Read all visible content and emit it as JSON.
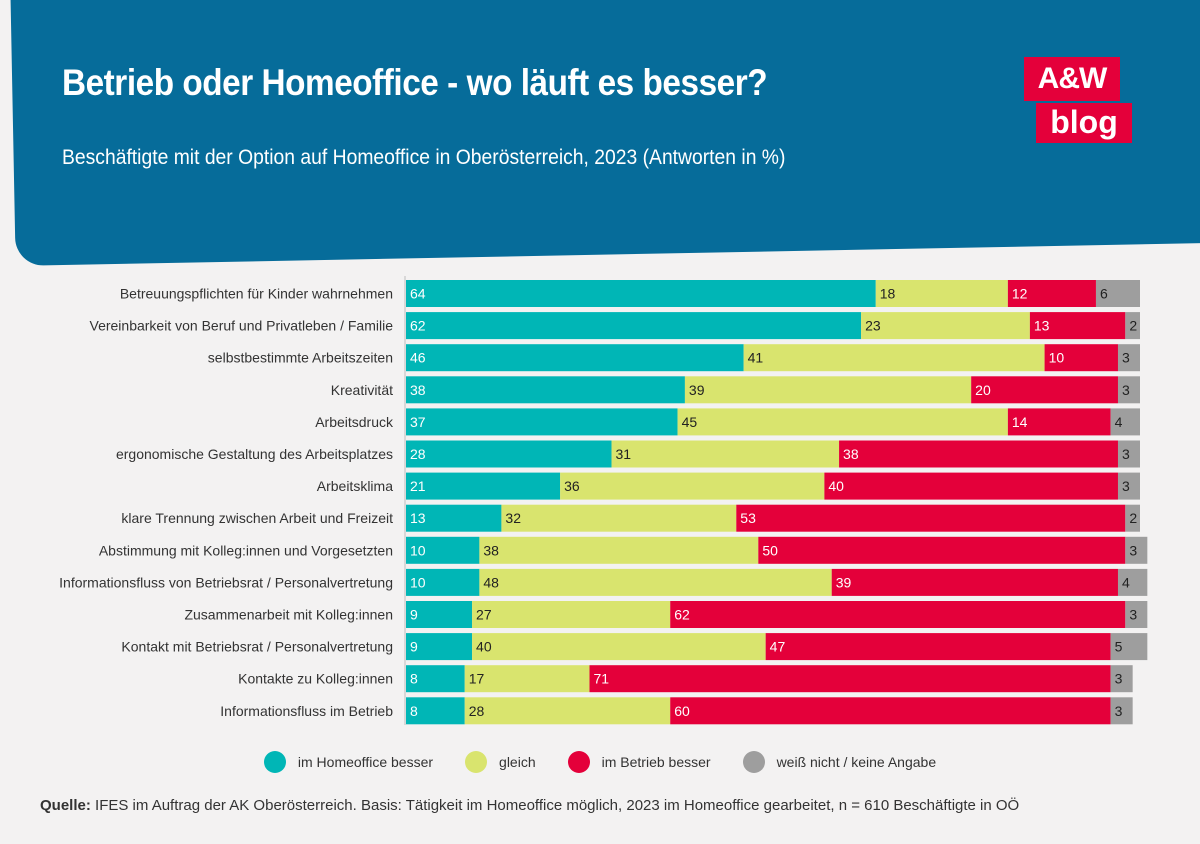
{
  "header": {
    "title": "Betrieb oder Homeoffice - wo läuft es besser?",
    "subtitle": "Beschäftigte mit der Option auf Homeoffice in Oberösterreich, 2023 (Antworten in %)"
  },
  "logo": {
    "line1": "A&W",
    "line2": "blog"
  },
  "colors": {
    "banner": "#066c9a",
    "homeoffice": "#00b6b6",
    "gleich": "#d9e46e",
    "betrieb": "#e4003a",
    "keine": "#9e9e9e"
  },
  "chart_data": {
    "type": "bar",
    "orientation": "horizontal-stacked-100",
    "title": "Betrieb oder Homeoffice - wo läuft es besser?",
    "subtitle": "Beschäftigte mit der Option auf Homeoffice in Oberösterreich, 2023 (Antworten in %)",
    "xlim": [
      0,
      100
    ],
    "categories": [
      "Betreuungspflichten für Kinder wahrnehmen",
      "Vereinbarkeit von Beruf und Privatleben / Familie",
      "selbstbestimmte Arbeitszeiten",
      "Kreativität",
      "Arbeitsdruck",
      "ergonomische Gestaltung des Arbeitsplatzes",
      "Arbeitsklima",
      "klare Trennung zwischen Arbeit und Freizeit",
      "Abstimmung mit Kolleg:innen und Vorgesetzten",
      "Informationsfluss von Betriebsrat / Personalvertretung",
      "Zusammenarbeit mit Kolleg:innen",
      "Kontakt mit Betriebsrat / Personalvertretung",
      "Kontakte zu Kolleg:innen",
      "Informationsfluss im Betrieb"
    ],
    "series": [
      {
        "name": "im Homeoffice besser",
        "color": "#00b6b6",
        "label_color": "#ffffff",
        "values": [
          64,
          62,
          46,
          38,
          37,
          28,
          21,
          13,
          10,
          10,
          9,
          9,
          8,
          8
        ]
      },
      {
        "name": "gleich",
        "color": "#d9e46e",
        "label_color": "#222222",
        "values": [
          18,
          23,
          41,
          39,
          45,
          31,
          36,
          32,
          38,
          48,
          27,
          40,
          17,
          28
        ]
      },
      {
        "name": "im Betrieb besser",
        "color": "#e4003a",
        "label_color": "#ffffff",
        "values": [
          12,
          13,
          10,
          20,
          14,
          38,
          40,
          53,
          50,
          39,
          62,
          47,
          71,
          60
        ]
      },
      {
        "name": "weiß nicht / keine Angabe",
        "color": "#9e9e9e",
        "label_color": "#222222",
        "values": [
          6,
          2,
          3,
          3,
          4,
          3,
          3,
          2,
          3,
          4,
          3,
          5,
          3,
          3
        ]
      }
    ],
    "legend_position": "bottom-center"
  },
  "source": {
    "label": "Quelle:",
    "text": " IFES im Auftrag der AK Oberösterreich. Basis: Tätigkeit im Homeoffice möglich, 2023 im Homeoffice gearbeitet, n = 610 Beschäftigte in OÖ"
  }
}
